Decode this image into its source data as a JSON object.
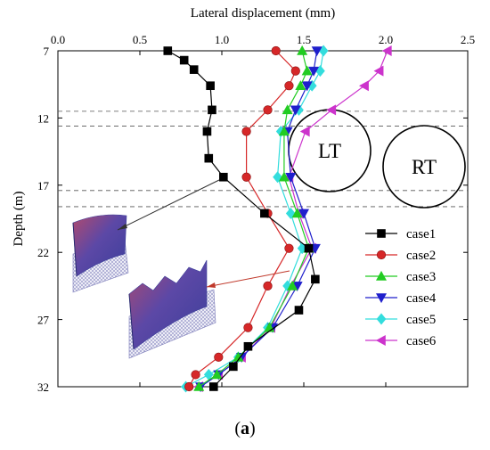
{
  "chart_data": {
    "type": "line",
    "xlabel": "Lateral displacement (mm)",
    "ylabel": "Depth (m)",
    "xlim": [
      0.0,
      2.5
    ],
    "ylim": [
      7,
      32
    ],
    "y_inverted": true,
    "x_axis_position": "top",
    "x_ticks": [
      "0.0",
      "0.5",
      "1.0",
      "1.5",
      "2.0",
      "2.5"
    ],
    "y_ticks": [
      "7",
      "12",
      "17",
      "22",
      "27",
      "32"
    ],
    "legend_position": "right-middle",
    "grid": false,
    "series": [
      {
        "name": "case1",
        "color": "#000000",
        "marker": "square",
        "x": [
          0.67,
          0.77,
          0.83,
          0.93,
          0.94,
          0.91,
          0.92,
          1.01,
          1.26,
          1.53,
          1.57,
          1.47,
          1.16,
          1.07,
          0.95
        ],
        "y": [
          7.0,
          7.7,
          8.4,
          9.6,
          11.4,
          13.0,
          15.0,
          16.4,
          19.1,
          21.7,
          24.0,
          26.3,
          29.0,
          30.5,
          32.0
        ]
      },
      {
        "name": "case2",
        "color": "#d62728",
        "marker": "circle",
        "x": [
          1.33,
          1.45,
          1.41,
          1.28,
          1.15,
          1.15,
          1.28,
          1.41,
          1.28,
          1.16,
          0.98,
          0.84,
          0.8
        ],
        "y": [
          7.0,
          8.5,
          9.6,
          11.4,
          13.0,
          16.4,
          19.1,
          21.7,
          24.5,
          27.6,
          29.8,
          31.1,
          32.0
        ]
      },
      {
        "name": "case3",
        "color": "#22cc22",
        "marker": "triangle-up",
        "x": [
          1.49,
          1.52,
          1.48,
          1.4,
          1.38,
          1.38,
          1.46,
          1.53,
          1.43,
          1.29,
          1.1,
          0.97,
          0.86
        ],
        "y": [
          7.0,
          8.5,
          9.6,
          11.4,
          13.0,
          16.4,
          19.1,
          21.7,
          24.5,
          27.6,
          29.8,
          31.1,
          32.0
        ]
      },
      {
        "name": "case4",
        "color": "#1f1fcc",
        "marker": "triangle-down",
        "x": [
          1.58,
          1.56,
          1.52,
          1.45,
          1.4,
          1.42,
          1.5,
          1.57,
          1.46,
          1.31,
          1.12,
          0.98,
          0.87
        ],
        "y": [
          7.0,
          8.5,
          9.6,
          11.4,
          13.0,
          16.4,
          19.1,
          21.7,
          24.5,
          27.6,
          29.8,
          31.1,
          32.0
        ]
      },
      {
        "name": "case5",
        "color": "#33dddd",
        "marker": "diamond",
        "x": [
          1.62,
          1.6,
          1.55,
          1.47,
          1.36,
          1.34,
          1.42,
          1.49,
          1.4,
          1.28,
          1.1,
          0.92,
          0.78
        ],
        "y": [
          7.0,
          8.5,
          9.6,
          11.4,
          13.0,
          16.4,
          19.1,
          21.7,
          24.5,
          27.6,
          29.8,
          31.1,
          32.0
        ]
      },
      {
        "name": "case6",
        "color": "#cc33cc",
        "marker": "triangle-left",
        "x": [
          2.01,
          1.96,
          1.87,
          1.67,
          1.51,
          1.41,
          1.47,
          1.55,
          1.42,
          1.3,
          1.12,
          0.98,
          0.86
        ],
        "y": [
          7.0,
          8.5,
          9.6,
          11.4,
          13.0,
          16.4,
          19.1,
          21.7,
          24.5,
          27.6,
          29.8,
          31.1,
          32.0
        ]
      }
    ],
    "reference_lines_depth": [
      11.5,
      12.6,
      17.4,
      18.6
    ],
    "annotations": [
      "LT",
      "RT"
    ]
  },
  "caption": {
    "prefix": "(",
    "letter": "a",
    "suffix": ")"
  }
}
